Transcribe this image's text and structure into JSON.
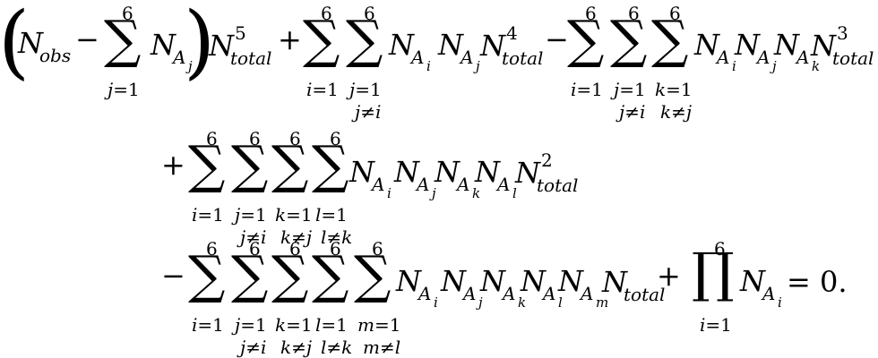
{
  "equation": {
    "op_minus": "−",
    "op_plus": "+",
    "sum": "∑",
    "prod": "∏",
    "paren_open": "(",
    "paren_close": ")",
    "six": "6",
    "one": "1",
    "eq": "=",
    "ne": "≠",
    "N": "N",
    "A": "A",
    "obs": "obs",
    "total": "total",
    "idx_i": "i",
    "idx_j": "j",
    "idx_k": "k",
    "idx_l": "l",
    "idx_m": "m",
    "pow5": "5",
    "pow4": "4",
    "pow3": "3",
    "pow2": "2",
    "equals_zero": "= 0."
  }
}
